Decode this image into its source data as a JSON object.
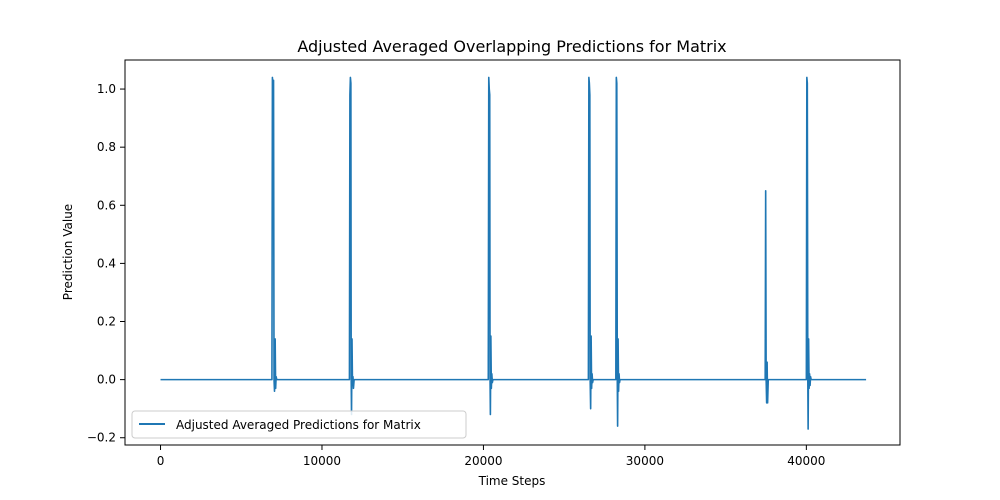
{
  "chart_data": {
    "type": "line",
    "title": "Adjusted Averaged Overlapping Predictions for Matrix",
    "xlabel": "Time Steps",
    "ylabel": "Prediction Value",
    "xlim": [
      -2200,
      45800
    ],
    "ylim": [
      -0.225,
      1.1
    ],
    "xticks": [
      0,
      10000,
      20000,
      30000,
      40000
    ],
    "xtick_labels": [
      "0",
      "10000",
      "20000",
      "30000",
      "40000"
    ],
    "yticks": [
      -0.2,
      0.0,
      0.2,
      0.4,
      0.6,
      0.8,
      1.0
    ],
    "ytick_labels": [
      "−0.2",
      "0.0",
      "0.2",
      "0.4",
      "0.6",
      "0.8",
      "1.0"
    ],
    "grid": false,
    "legend_position": "lower-left",
    "series": [
      {
        "name": "Adjusted Averaged Predictions for Matrix",
        "color": "#1f77b4",
        "x": [
          0,
          6900,
          6930,
          6950,
          6980,
          7000,
          7030,
          7060,
          7080,
          7100,
          7130,
          7160,
          7200,
          11700,
          11730,
          11760,
          11790,
          11810,
          11830,
          11860,
          11890,
          11920,
          11950,
          11990,
          20300,
          20330,
          20360,
          20390,
          20410,
          20430,
          20460,
          20490,
          20520,
          20550,
          20590,
          26500,
          26530,
          26560,
          26590,
          26610,
          26640,
          26670,
          26700,
          26730,
          26760,
          26800,
          28200,
          28230,
          28260,
          28290,
          28310,
          28340,
          28370,
          28400,
          28430,
          28460,
          28500,
          37450,
          37480,
          37510,
          37540,
          37570,
          37600,
          37640,
          40000,
          40030,
          40060,
          40090,
          40110,
          40140,
          40170,
          40200,
          40230,
          40260,
          40300,
          43700
        ],
        "y": [
          0.0,
          0.0,
          1.04,
          1.02,
          0.98,
          1.03,
          0.0,
          -0.04,
          0.02,
          0.14,
          -0.03,
          0.01,
          0.0,
          0.0,
          0.98,
          1.04,
          1.02,
          0.0,
          -0.12,
          0.14,
          -0.02,
          0.01,
          -0.03,
          0.0,
          0.0,
          1.04,
          1.0,
          0.98,
          0.0,
          -0.12,
          0.15,
          -0.03,
          0.02,
          -0.01,
          0.0,
          0.0,
          1.04,
          1.02,
          0.98,
          0.0,
          -0.1,
          0.15,
          -0.03,
          0.02,
          -0.01,
          0.0,
          0.0,
          1.04,
          1.02,
          0.0,
          -0.16,
          0.14,
          -0.04,
          0.02,
          -0.01,
          0.0,
          0.0,
          0.0,
          0.65,
          0.0,
          -0.08,
          0.06,
          -0.08,
          0.0,
          0.0,
          1.04,
          1.02,
          0.0,
          -0.17,
          0.14,
          -0.03,
          0.02,
          -0.02,
          0.01,
          0.0,
          0.0
        ]
      }
    ]
  }
}
